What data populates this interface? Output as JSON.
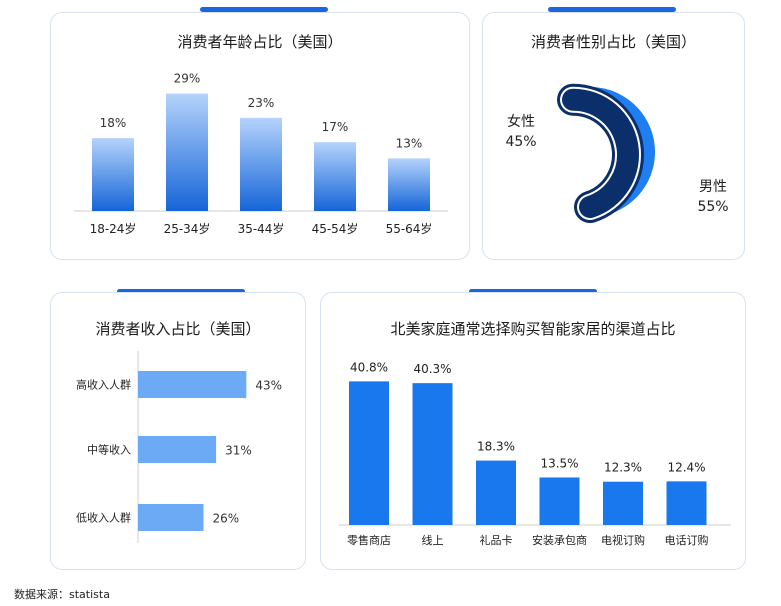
{
  "charts": {
    "age": {
      "type": "bar",
      "title": "消费者年龄占比（美国）",
      "categories": [
        "18-24岁",
        "25-34岁",
        "35-44岁",
        "45-54岁",
        "55-64岁"
      ],
      "values": [
        18,
        29,
        23,
        17,
        13
      ],
      "labels": [
        "18%",
        "29%",
        "23%",
        "17%",
        "13%"
      ]
    },
    "gender": {
      "type": "pie",
      "title": "消费者性别占比（美国）",
      "categories": [
        "女性",
        "男性"
      ],
      "values": [
        45,
        55
      ],
      "labels": [
        "45%",
        "55%"
      ]
    },
    "income": {
      "type": "bar",
      "orientation": "horizontal",
      "title": "消费者收入占比（美国）",
      "categories": [
        "高收入人群",
        "中等收入",
        "低收入人群"
      ],
      "values": [
        43,
        31,
        26
      ],
      "labels": [
        "43%",
        "31%",
        "26%"
      ]
    },
    "channel": {
      "type": "bar",
      "title": "北美家庭通常选择购买智能家居的渠道占比",
      "categories": [
        "零售商店",
        "线上",
        "礼品卡",
        "安装承包商",
        "电视订购",
        "电话订购"
      ],
      "values": [
        40.8,
        40.3,
        18.3,
        13.5,
        12.3,
        12.4
      ],
      "labels": [
        "40.8%",
        "40.3%",
        "18.3%",
        "13.5%",
        "12.3%",
        "12.4%"
      ]
    }
  },
  "chart_data": [
    {
      "type": "bar",
      "title": "消费者年龄占比（美国）",
      "categories": [
        "18-24岁",
        "25-34岁",
        "35-44岁",
        "45-54岁",
        "55-64岁"
      ],
      "values": [
        18,
        29,
        23,
        17,
        13
      ],
      "unit": "%"
    },
    {
      "type": "pie",
      "title": "消费者性别占比（美国）",
      "categories": [
        "女性",
        "男性"
      ],
      "values": [
        45,
        55
      ],
      "unit": "%"
    },
    {
      "type": "bar",
      "orientation": "horizontal",
      "title": "消费者收入占比（美国）",
      "categories": [
        "高收入人群",
        "中等收入",
        "低收入人群"
      ],
      "values": [
        43,
        31,
        26
      ],
      "unit": "%"
    },
    {
      "type": "bar",
      "title": "北美家庭通常选择购买智能家居的渠道占比",
      "categories": [
        "零售商店",
        "线上",
        "礼品卡",
        "安装承包商",
        "电视订购",
        "电话订购"
      ],
      "values": [
        40.8,
        40.3,
        18.3,
        13.5,
        12.3,
        12.4
      ],
      "unit": "%"
    }
  ],
  "colors": {
    "accent": "#1a66e0",
    "bar_top": "#b5d3fb",
    "bar_bottom": "#1565d8",
    "female": "#0a2f6b",
    "male": "#1f7ef0",
    "income_bar": "#6daaf6",
    "channel_bar": "#1a78ee"
  },
  "footer": {
    "source": "数据来源：statista"
  }
}
